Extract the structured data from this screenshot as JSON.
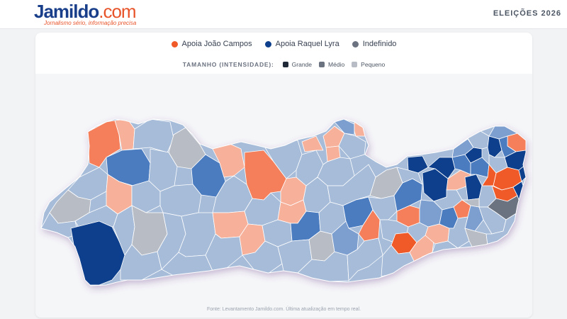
{
  "header": {
    "logo_main": "Jamildo",
    "logo_suffix": ".com",
    "logo_tagline": "Jornalismo sério, informação precisa",
    "section_title": "ELEIÇÕES 2026"
  },
  "legend": {
    "candidates": [
      {
        "label": "Apoia João Campos",
        "color": "#f05a28"
      },
      {
        "label": "Apoia Raquel Lyra",
        "color": "#0d3f8c"
      },
      {
        "label": "Indefinido",
        "color": "#6b7280"
      }
    ],
    "size_label": "TAMANHO (INTENSIDADE):",
    "sizes": [
      {
        "label": "Grande",
        "color": "#1f2937"
      },
      {
        "label": "Médio",
        "color": "#6b7280"
      },
      {
        "label": "Pequeno",
        "color": "#b8bcc4"
      }
    ]
  },
  "map": {
    "palette": {
      "base": "#a6bcd9",
      "campos_strong": "#f05a28",
      "campos_medium": "#f47f5a",
      "campos_light": "#f7b09a",
      "lyra_strong": "#0d3f8c",
      "lyra_medium": "#4b7cc0",
      "lyra_light": "#7d9fd0",
      "undefined_medium": "#6b7280",
      "undefined_light": "#b8bcc4"
    }
  },
  "footer": {
    "source": "Fonte: Levantamento Jamildo.com. Última atualização em tempo real."
  }
}
